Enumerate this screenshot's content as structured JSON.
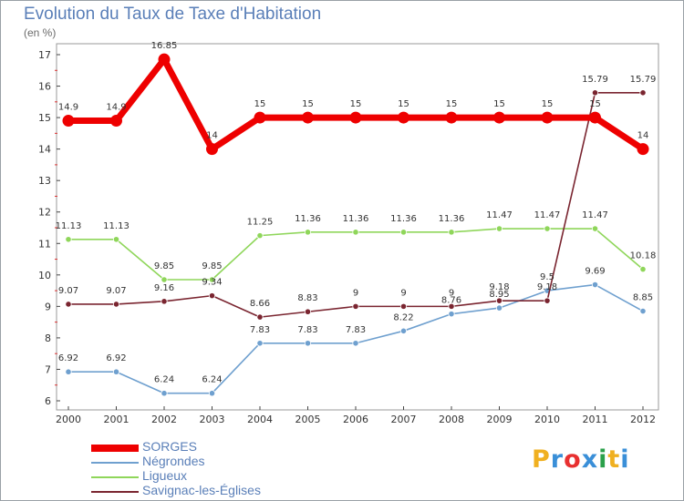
{
  "header": {
    "title": "Evolution du Taux de Taxe d'Habitation",
    "subtitle": "(en %)"
  },
  "brand": {
    "letters": [
      "P",
      "r",
      "o",
      "x",
      "i",
      "t",
      "i"
    ],
    "colors": [
      "#f0b020",
      "#3a8fd8",
      "#e83030",
      "#3a8fd8",
      "#2aa04a",
      "#f0b020",
      "#3a8fd8"
    ]
  },
  "chart_data": {
    "type": "line",
    "title": "Evolution du Taux de Taxe d'Habitation",
    "subtitle": "(en %)",
    "x": [
      "2000",
      "2001",
      "2002",
      "2003",
      "2004",
      "2005",
      "2006",
      "2007",
      "2008",
      "2009",
      "2010",
      "2011",
      "2012"
    ],
    "ylim": [
      6,
      17
    ],
    "yticks": [
      6,
      7,
      8,
      9,
      10,
      11,
      12,
      13,
      14,
      15,
      16,
      17
    ],
    "grid": false,
    "legend_position": "bottom-left",
    "series": [
      {
        "name": "SORGES",
        "color": "#ee0000",
        "values": [
          14.9,
          14.9,
          16.85,
          14,
          15,
          15,
          15,
          15,
          15,
          15,
          15,
          15,
          14
        ],
        "labels": [
          "14.9",
          "14.9",
          "16.85",
          "14",
          "15",
          "15",
          "15",
          "15",
          "15",
          "15",
          "15",
          "15",
          "14"
        ]
      },
      {
        "name": "Négrondes",
        "color": "#6fa0cf",
        "values": [
          6.92,
          6.92,
          6.24,
          6.24,
          7.83,
          7.83,
          7.83,
          8.22,
          8.76,
          8.95,
          9.5,
          9.69,
          8.85
        ],
        "labels": [
          "6.92",
          "6.92",
          "6.24",
          "6.24",
          "7.83",
          "7.83",
          "7.83",
          "8.22",
          "8.76",
          "8.95",
          "9.5",
          "9.69",
          "8.85"
        ]
      },
      {
        "name": "Ligueux",
        "color": "#8fd65a",
        "values": [
          11.13,
          11.13,
          9.85,
          9.85,
          11.25,
          11.36,
          11.36,
          11.36,
          11.36,
          11.47,
          11.47,
          11.47,
          10.18
        ],
        "labels": [
          "11.13",
          "11.13",
          "9.85",
          "9.85",
          "11.25",
          "11.36",
          "11.36",
          "11.36",
          "11.36",
          "11.47",
          "11.47",
          "11.47",
          "10.18"
        ]
      },
      {
        "name": "Savignac-les-Églises",
        "color": "#7a2530",
        "values": [
          9.07,
          9.07,
          9.16,
          9.34,
          8.66,
          8.83,
          9,
          9,
          9,
          9.18,
          9.18,
          15.79,
          15.79
        ],
        "labels": [
          "9.07",
          "9.07",
          "9.16",
          "9.34",
          "8.66",
          "8.83",
          "9",
          "9",
          "9",
          "9.18",
          "9.18",
          "15.79",
          "15.79"
        ]
      }
    ]
  }
}
